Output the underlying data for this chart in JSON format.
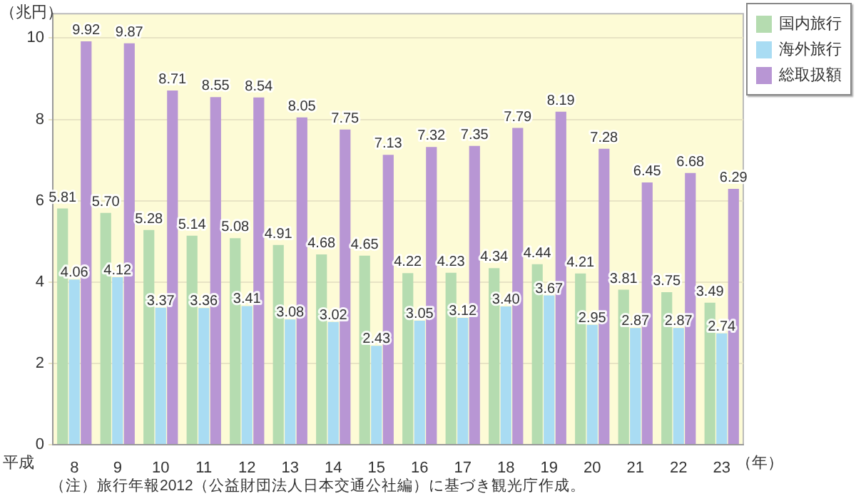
{
  "chart_data": {
    "type": "bar",
    "ylabel": "（兆円）",
    "xlabel": "（年）",
    "categories": [
      "8",
      "9",
      "10",
      "11",
      "12",
      "13",
      "14",
      "15",
      "16",
      "17",
      "18",
      "19",
      "20",
      "21",
      "22",
      "23"
    ],
    "series": [
      {
        "name": "国内旅行",
        "color": "#b5dcb0",
        "values": [
          5.81,
          5.7,
          5.28,
          5.14,
          5.08,
          4.91,
          4.68,
          4.65,
          4.22,
          4.23,
          4.34,
          4.44,
          4.21,
          3.81,
          3.75,
          3.49
        ],
        "value_labels": [
          "5.81",
          "5.70",
          "5.28",
          "5.14",
          "5.08",
          "4.91",
          "4.68",
          "4.65",
          "4.22",
          "4.23",
          "4.34",
          "4.44",
          "4.21",
          "3.81",
          "3.75",
          "3.49"
        ]
      },
      {
        "name": "海外旅行",
        "color": "#a9dcf3",
        "values": [
          4.06,
          4.12,
          3.37,
          3.36,
          3.41,
          3.08,
          3.02,
          2.43,
          3.05,
          3.12,
          3.4,
          3.67,
          2.95,
          2.87,
          2.87,
          2.74
        ],
        "value_labels": [
          "4.06",
          "4.12",
          "3.37",
          "3.36",
          "3.41",
          "3.08",
          "3.02",
          "2.43",
          "3.05",
          "3.12",
          "3.40",
          "3.67",
          "2.95",
          "2.87",
          "2.87",
          "2.74"
        ]
      },
      {
        "name": "総取扱額",
        "color": "#b896d4",
        "values": [
          9.92,
          9.87,
          8.71,
          8.55,
          8.54,
          8.05,
          7.75,
          7.13,
          7.32,
          7.35,
          7.79,
          8.19,
          7.28,
          6.45,
          6.68,
          6.29
        ],
        "value_labels": [
          "9.92",
          "9.87",
          "8.71",
          "8.55",
          "8.54",
          "8.05",
          "7.75",
          "7.13",
          "7.32",
          "7.35",
          "7.79",
          "8.19",
          "7.28",
          "6.45",
          "6.68",
          "6.29"
        ]
      }
    ],
    "ylim": [
      0,
      10.6
    ],
    "yticks": [
      0,
      2,
      4,
      6,
      8,
      10
    ],
    "grid": "y",
    "legend": "top right",
    "annotations": [
      "平成",
      "（注）旅行年報2012（公益財団法人日本交通公社編）に基づき観光庁作成。"
    ]
  }
}
